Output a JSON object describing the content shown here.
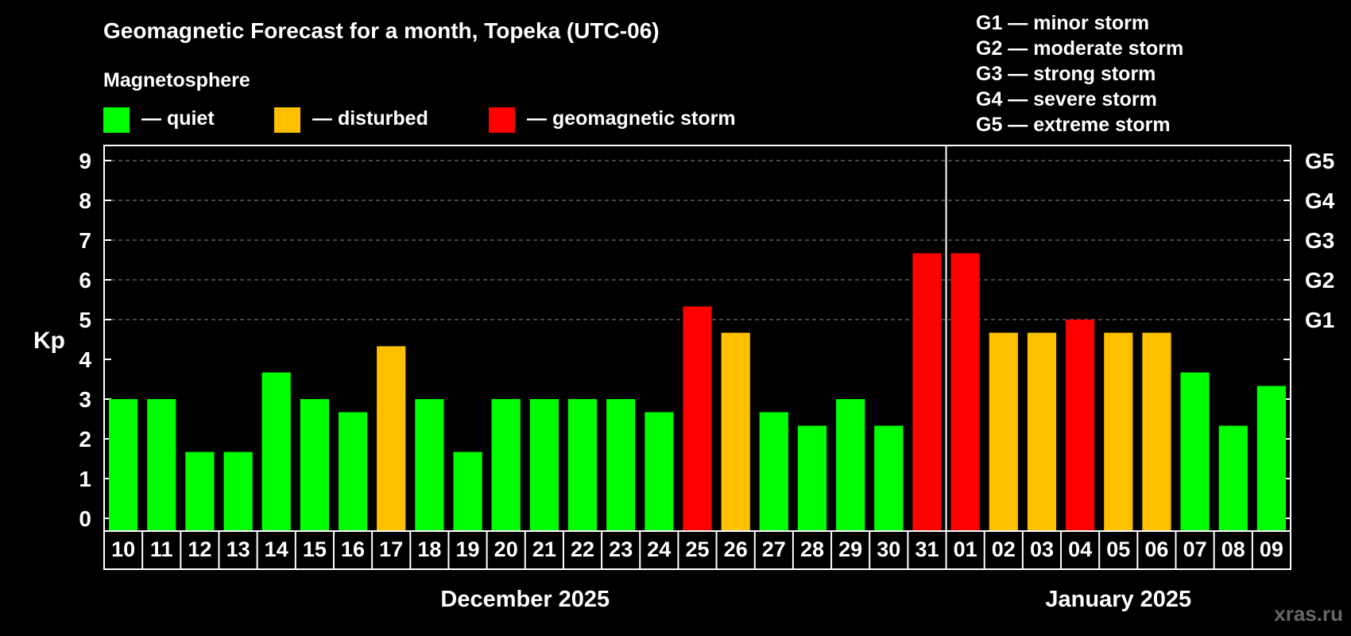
{
  "header": {
    "title": "Geomagnetic Forecast for a month, Topeka (UTC-06)",
    "subtitle": "Magnetosphere",
    "watermark": "xras.ru"
  },
  "legend": [
    {
      "label": "— quiet",
      "color": "#00ff00"
    },
    {
      "label": "— disturbed",
      "color": "#ffc000"
    },
    {
      "label": "— geomagnetic storm",
      "color": "#ff0000"
    }
  ],
  "g_scale": [
    "G1 — minor storm",
    "G2 — moderate storm",
    "G3 — strong storm",
    "G4 — severe storm",
    "G5 — extreme storm"
  ],
  "chart_data": {
    "type": "bar",
    "ylabel": "Kp",
    "ylim": [
      0,
      9
    ],
    "y_ticks": [
      "0",
      "1",
      "2",
      "3",
      "4",
      "5",
      "6",
      "7",
      "8",
      "9"
    ],
    "right_ticks": [
      {
        "value": 5,
        "label": "G1"
      },
      {
        "value": 6,
        "label": "G2"
      },
      {
        "value": 7,
        "label": "G3"
      },
      {
        "value": 8,
        "label": "G4"
      },
      {
        "value": 9,
        "label": "G5"
      }
    ],
    "grid": "dashed horizontal at 5-9",
    "categories": [
      "10",
      "11",
      "12",
      "13",
      "14",
      "15",
      "16",
      "17",
      "18",
      "19",
      "20",
      "21",
      "22",
      "23",
      "24",
      "25",
      "26",
      "27",
      "28",
      "29",
      "30",
      "31",
      "01",
      "02",
      "03",
      "04",
      "05",
      "06",
      "07",
      "08",
      "09"
    ],
    "values": [
      3,
      3,
      1.67,
      1.67,
      3.67,
      3,
      2.67,
      4.33,
      3,
      1.67,
      3,
      3,
      3,
      3,
      2.67,
      5.33,
      4.67,
      2.67,
      2.33,
      3,
      2.33,
      6.67,
      6.67,
      4.67,
      4.67,
      5,
      4.67,
      4.67,
      3.67,
      2.33,
      3.33
    ],
    "colors": [
      "#00ff00",
      "#00ff00",
      "#00ff00",
      "#00ff00",
      "#00ff00",
      "#00ff00",
      "#00ff00",
      "#ffc000",
      "#00ff00",
      "#00ff00",
      "#00ff00",
      "#00ff00",
      "#00ff00",
      "#00ff00",
      "#00ff00",
      "#ff0000",
      "#ffc000",
      "#00ff00",
      "#00ff00",
      "#00ff00",
      "#00ff00",
      "#ff0000",
      "#ff0000",
      "#ffc000",
      "#ffc000",
      "#ff0000",
      "#ffc000",
      "#ffc000",
      "#00ff00",
      "#00ff00",
      "#00ff00"
    ],
    "months": [
      {
        "label": "December 2025",
        "first_index": 0,
        "last_index": 21
      },
      {
        "label": "January 2025",
        "first_index": 22,
        "last_index": 30
      }
    ]
  }
}
